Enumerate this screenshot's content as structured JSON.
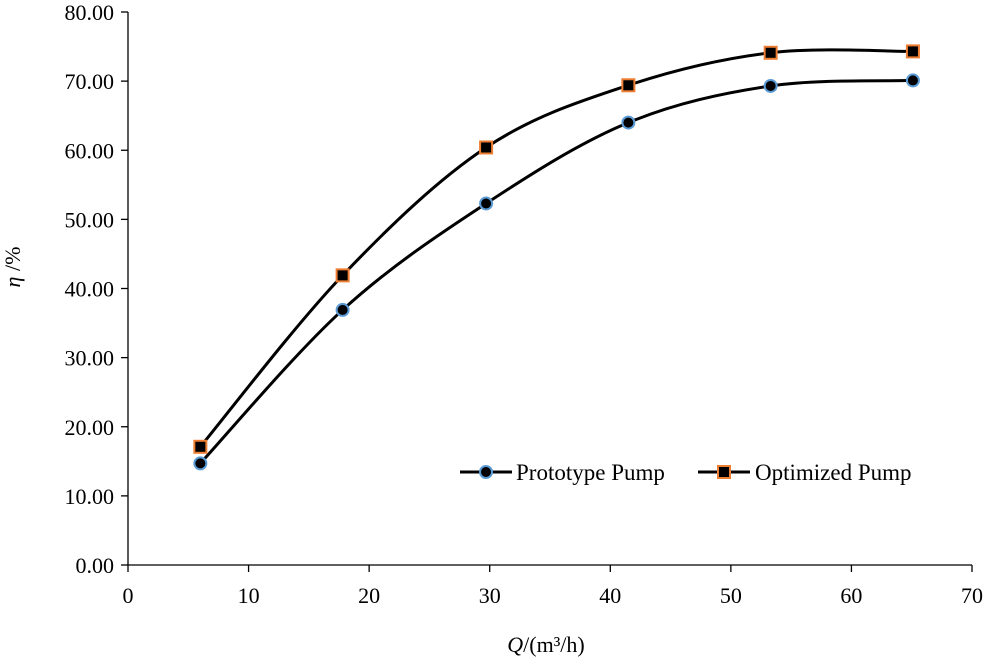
{
  "chart_data": {
    "type": "line",
    "title": "",
    "xlabel_symbol": "Q",
    "xlabel_unit": "/(m³/h)",
    "ylabel_symbol": "η",
    "ylabel_unit": " /%",
    "xlim": [
      0,
      70
    ],
    "ylim": [
      0,
      80
    ],
    "x_ticks": [
      0,
      10,
      20,
      30,
      40,
      50,
      60,
      70
    ],
    "x_tick_labels": [
      "0",
      "10",
      "20",
      "30",
      "40",
      "50",
      "60",
      "70"
    ],
    "y_ticks": [
      0,
      10,
      20,
      30,
      40,
      50,
      60,
      70,
      80
    ],
    "y_tick_labels": [
      "0.00",
      "10.00",
      "20.00",
      "30.00",
      "40.00",
      "50.00",
      "60.00",
      "70.00",
      "80.00"
    ],
    "grid": false,
    "legend_position": "bottom-right",
    "series": [
      {
        "name": "Prototype Pump",
        "marker": "circle",
        "line_color": "#000000",
        "marker_fill": "#000000",
        "marker_edge": "#5b9bd5",
        "points": [
          {
            "x": 6.0,
            "y": 14.7
          },
          {
            "x": 17.8,
            "y": 36.9
          },
          {
            "x": 29.7,
            "y": 52.3
          },
          {
            "x": 41.5,
            "y": 64.0
          },
          {
            "x": 53.3,
            "y": 69.3
          },
          {
            "x": 65.1,
            "y": 70.1
          }
        ]
      },
      {
        "name": "Optimized Pump",
        "marker": "square",
        "line_color": "#000000",
        "marker_fill": "#000000",
        "marker_edge": "#ed7d31",
        "points": [
          {
            "x": 6.0,
            "y": 17.1
          },
          {
            "x": 17.8,
            "y": 41.9
          },
          {
            "x": 29.7,
            "y": 60.4
          },
          {
            "x": 41.5,
            "y": 69.4
          },
          {
            "x": 53.3,
            "y": 74.1
          },
          {
            "x": 65.1,
            "y": 74.3
          }
        ]
      }
    ]
  }
}
